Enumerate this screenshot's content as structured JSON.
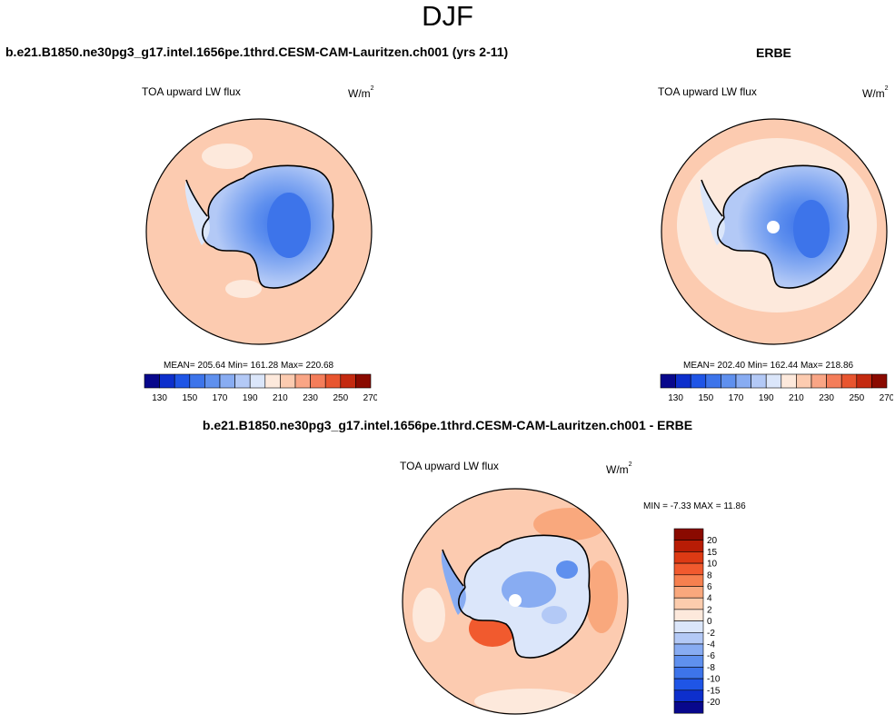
{
  "season": "DJF",
  "panels": {
    "model": {
      "title": "b.e21.B1850.ne30pg3_g17.intel.1656pe.1thrd.CESM-CAM-Lauritzen.ch001 (yrs 2-11)",
      "variable": "TOA upward LW flux",
      "units": "W/m",
      "units_exp": "2",
      "stats": "MEAN= 205.64  Min= 161.28  Max= 220.68"
    },
    "obs": {
      "title": "ERBE",
      "variable": "TOA upward LW flux",
      "units": "W/m",
      "units_exp": "2",
      "stats": "MEAN= 202.40  Min= 162.44  Max= 218.86"
    },
    "diff": {
      "title": "b.e21.B1850.ne30pg3_g17.intel.1656pe.1thrd.CESM-CAM-Lauritzen.ch001 - ERBE",
      "variable": "TOA upward LW flux",
      "units": "W/m",
      "units_exp": "2",
      "stats": "MIN =  -7.33 MAX =  11.86"
    }
  },
  "colorbar_abs": {
    "colors": [
      "#08088c",
      "#0d2fcc",
      "#1f55e6",
      "#3d74ea",
      "#5f90ee",
      "#88acf2",
      "#b3c9f6",
      "#dbe6fa",
      "#fde9dc",
      "#fccbb0",
      "#f9a585",
      "#f47d5a",
      "#e8552f",
      "#c42a10",
      "#8a0a00"
    ],
    "labels": [
      "130",
      "150",
      "170",
      "190",
      "210",
      "230",
      "250",
      "270"
    ]
  },
  "colorbar_diff": {
    "colors": [
      "#8a0a00",
      "#b81c05",
      "#dd3a14",
      "#f15a2e",
      "#f6804f",
      "#f9a87d",
      "#fcccad",
      "#fde9dc",
      "#dbe6fa",
      "#b3c9f6",
      "#88acf2",
      "#5f90ee",
      "#3d74ea",
      "#1f55e6",
      "#0d2fcc",
      "#08088c"
    ],
    "labels": [
      "20",
      "15",
      "10",
      "8",
      "6",
      "4",
      "2",
      "0",
      "-2",
      "-4",
      "-6",
      "-8",
      "-10",
      "-15",
      "-20"
    ]
  }
}
